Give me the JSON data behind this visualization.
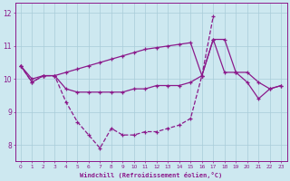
{
  "xlabel": "Windchill (Refroidissement éolien,°C)",
  "hours": [
    0,
    1,
    2,
    3,
    4,
    5,
    6,
    7,
    8,
    9,
    10,
    11,
    12,
    13,
    14,
    15,
    16,
    17,
    18,
    19,
    20,
    21,
    22,
    23
  ],
  "line_dashed": [
    10.4,
    9.9,
    10.1,
    10.1,
    9.3,
    8.7,
    8.3,
    7.9,
    8.5,
    8.3,
    8.3,
    8.4,
    8.4,
    8.5,
    8.6,
    8.8,
    10.1,
    11.9,
    null,
    null,
    null,
    null,
    null,
    null
  ],
  "line_mid": [
    10.4,
    9.9,
    10.1,
    10.1,
    9.7,
    9.6,
    9.6,
    9.6,
    9.6,
    9.6,
    9.7,
    9.7,
    9.8,
    9.8,
    9.8,
    9.9,
    10.1,
    11.2,
    10.2,
    10.2,
    9.9,
    9.4,
    9.7,
    9.8
  ],
  "line_top": [
    10.4,
    10.0,
    10.1,
    10.1,
    10.2,
    10.3,
    10.4,
    10.5,
    10.6,
    10.7,
    10.8,
    10.9,
    10.95,
    11.0,
    11.05,
    11.1,
    10.1,
    11.2,
    11.2,
    10.2,
    10.2,
    9.9,
    9.7,
    9.8
  ],
  "bg_color": "#cde8f0",
  "line_color": "#8b1a8b",
  "grid_color": "#a8ccd8",
  "ylim": [
    7.5,
    12.3
  ],
  "yticks": [
    8,
    9,
    10,
    11,
    12
  ],
  "xlim_min": -0.5,
  "xlim_max": 23.5
}
